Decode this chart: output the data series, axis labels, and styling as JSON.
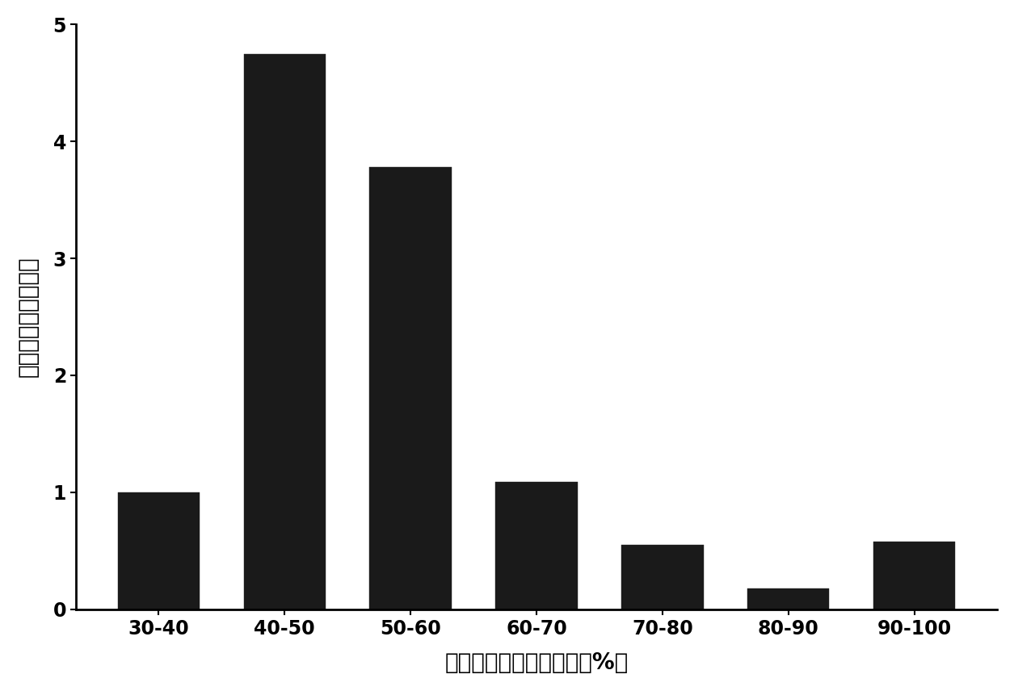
{
  "categories": [
    "30-40",
    "40-50",
    "50-60",
    "60-70",
    "70-80",
    "80-90",
    "90-100"
  ],
  "values": [
    1.0,
    4.75,
    3.78,
    1.09,
    0.55,
    0.18,
    0.58
  ],
  "bar_color": "#1a1a1a",
  "xlabel": "硬酸钐溶液饱和度梯度（%）",
  "ylabel": "沉淀相对单位酶活力",
  "ylim": [
    0,
    5
  ],
  "yticks": [
    0,
    1,
    2,
    3,
    4,
    5
  ],
  "background_color": "#ffffff",
  "bar_width": 0.65,
  "xlabel_fontsize": 20,
  "ylabel_fontsize": 20,
  "tick_fontsize": 17,
  "edge_color": "#1a1a1a"
}
